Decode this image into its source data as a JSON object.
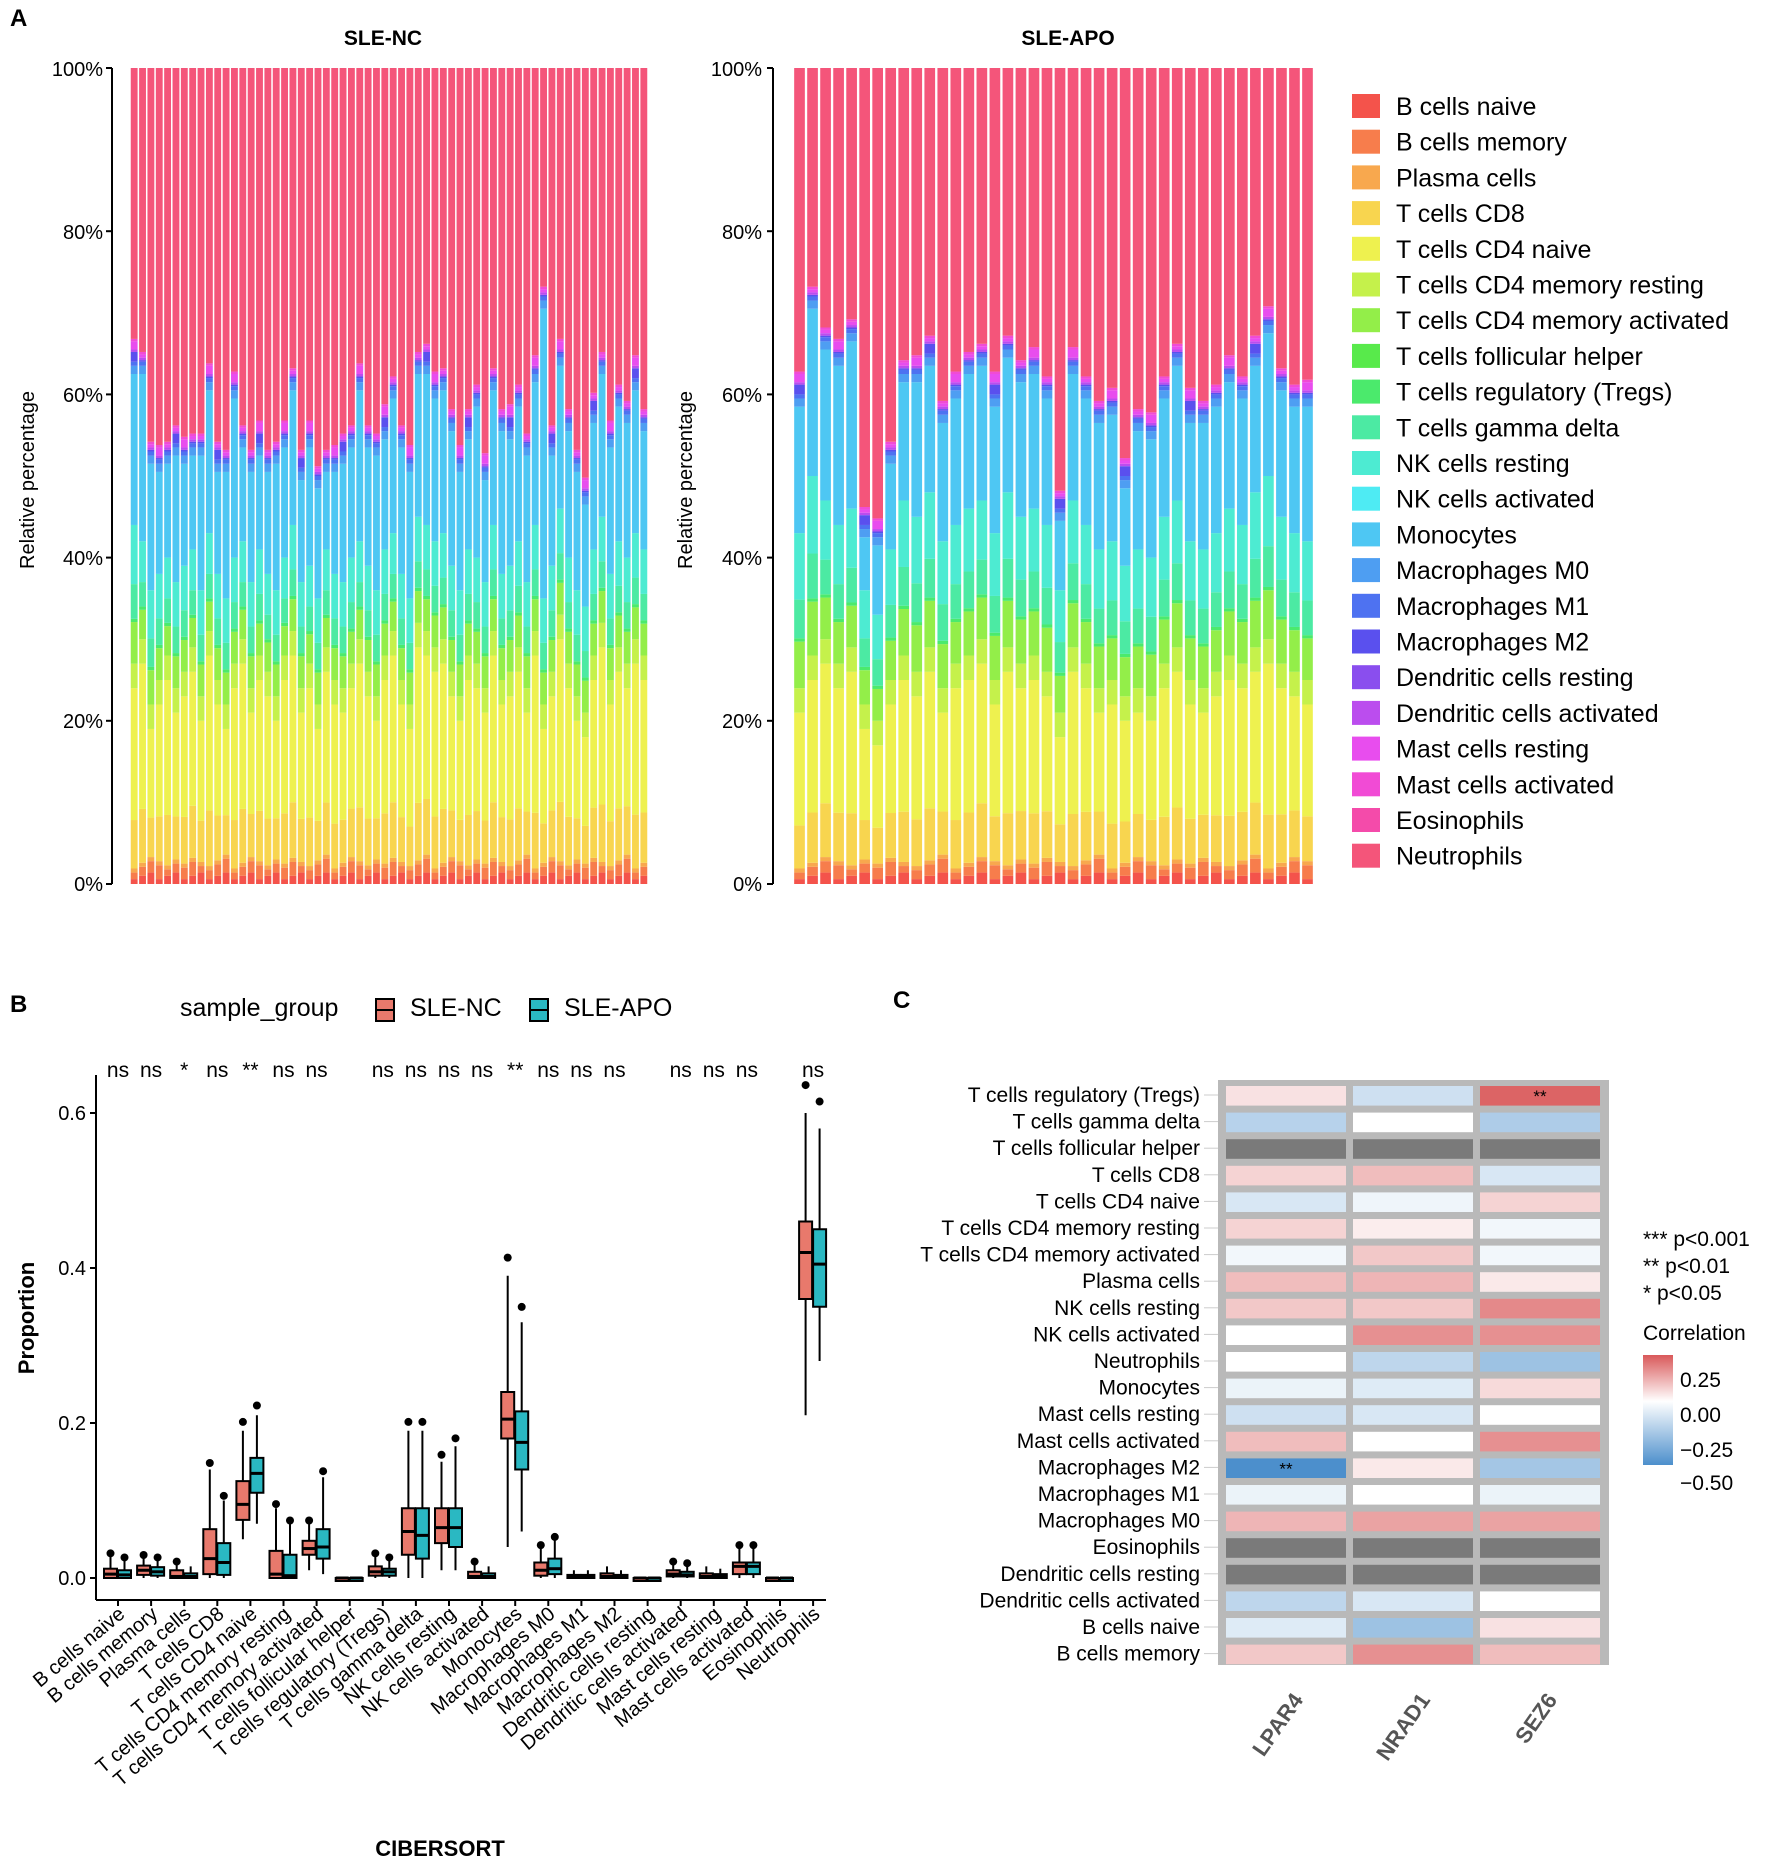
{
  "panel_labels": {
    "a": "A",
    "b": "B",
    "c": "C"
  },
  "colors": {
    "B cells naive": "#F4534B",
    "B cells memory": "#F77D4C",
    "Plasma cells": "#F8A84E",
    "T cells CD8": "#F8D54F",
    "T cells CD4 naive": "#EEF14F",
    "T cells CD4 memory resting": "#C5F14B",
    "T cells CD4 memory activated": "#93EE49",
    "T cells follicular helper": "#58EA4B",
    "T cells regulatory (Tregs)": "#4BEA6C",
    "T cells gamma delta": "#4CEAA3",
    "NK cells resting": "#4DEBD2",
    "NK cells activated": "#4EEBF3",
    "Monocytes": "#4EC7F3",
    "Macrophages M0": "#4E9EF2",
    "Macrophages M1": "#4E72F1",
    "Macrophages M2": "#5A50EE",
    "Dendritic cells resting": "#8A4EEE",
    "Dendritic cells activated": "#BB4DEE",
    "Mast cells resting": "#E84DEE",
    "Mast cells activated": "#F14BD5",
    "Eosinophils": "#F44BAA",
    "Neutrophils": "#F4557A",
    "nc_box": "#E8796C",
    "apo_box": "#2AB8C2",
    "heat_pos": "#D9595A",
    "heat_neg": "#4C8FCC",
    "heat_na": "#7A7A7A"
  },
  "chart_data": [
    {
      "type": "bar",
      "stacked": true,
      "title": "SLE-NC",
      "ylabel": "Relative percentage",
      "yticks": [
        "0%",
        "20%",
        "40%",
        "60%",
        "80%",
        "100%"
      ],
      "ylim": [
        0,
        100
      ],
      "n_samples": 62,
      "note": "stacked composition of 22 CIBERSORT cell types per sample; series in legend order",
      "anchor_values": {
        "Neutrophils_top": [
          35,
          34,
          41,
          45,
          44,
          46,
          45,
          44,
          44,
          36,
          45,
          44,
          36,
          43,
          46,
          43,
          46,
          45,
          44,
          36,
          47,
          43,
          48,
          47,
          46,
          45,
          44,
          36,
          44,
          45,
          42,
          37,
          44,
          47,
          34,
          35,
          38,
          36,
          41,
          46,
          42,
          39,
          48,
          37,
          41,
          42,
          39,
          45,
          36,
          27,
          45,
          34,
          42,
          47,
          51,
          40,
          35,
          43,
          39,
          41,
          36,
          40
        ],
        "Monocytes_top": [
          64,
          64,
          53,
          52,
          53,
          54,
          53,
          54,
          54,
          62,
          52,
          52,
          61,
          55,
          52,
          54,
          52,
          53,
          55,
          62,
          51,
          55,
          50,
          52,
          52,
          53,
          55,
          62,
          55,
          54,
          56,
          61,
          55,
          52,
          64,
          64,
          61,
          62,
          57,
          52,
          56,
          60,
          51,
          62,
          57,
          56,
          60,
          54,
          63,
          72,
          54,
          65,
          57,
          52,
          48,
          58,
          64,
          55,
          60,
          58,
          62,
          57
        ],
        "NK_gd_top": [
          44,
          42,
          36,
          38,
          40,
          37,
          39,
          41,
          36,
          43,
          38,
          35,
          40,
          42,
          37,
          41,
          38,
          36,
          40,
          44,
          37,
          39,
          35,
          41,
          38,
          37,
          40,
          42,
          39,
          36,
          41,
          43,
          38,
          35,
          45,
          44,
          42,
          43,
          39,
          36,
          41,
          40,
          37,
          44,
          38,
          39,
          42,
          37,
          44,
          35,
          39,
          46,
          40,
          36,
          34,
          41,
          45,
          38,
          42,
          40,
          43,
          41
        ],
        "T_CD4_top": [
          27,
          30,
          22,
          25,
          28,
          24,
          26,
          29,
          23,
          31,
          25,
          22,
          27,
          30,
          24,
          28,
          26,
          23,
          28,
          31,
          24,
          27,
          22,
          29,
          25,
          24,
          27,
          30,
          26,
          23,
          28,
          31,
          25,
          22,
          32,
          31,
          29,
          30,
          26,
          23,
          28,
          27,
          24,
          31,
          25,
          26,
          29,
          24,
          31,
          22,
          26,
          33,
          27,
          23,
          21,
          28,
          32,
          25,
          29,
          27,
          30,
          28
        ]
      }
    },
    {
      "type": "bar",
      "stacked": true,
      "title": "SLE-APO",
      "ylabel": "Relative percentage",
      "yticks": [
        "0%",
        "20%",
        "40%",
        "60%",
        "80%",
        "100%"
      ],
      "ylim": [
        0,
        100
      ],
      "n_samples": 40,
      "anchor_values": {
        "Neutrophils_top": [
          40,
          28,
          33,
          35,
          32,
          56,
          57,
          47,
          37,
          37,
          35,
          42,
          39,
          36,
          35,
          40,
          34,
          37,
          36,
          39,
          54,
          36,
          39,
          42,
          41,
          50,
          43,
          44,
          39,
          35,
          42,
          42,
          40,
          37,
          39,
          35,
          31,
          38,
          40,
          40
        ],
        "Monocytes_top": [
          60,
          72,
          67,
          65,
          68,
          44,
          43,
          53,
          63,
          63,
          65,
          58,
          61,
          64,
          65,
          60,
          66,
          63,
          64,
          61,
          46,
          64,
          61,
          58,
          59,
          50,
          57,
          56,
          61,
          65,
          58,
          58,
          60,
          63,
          61,
          65,
          69,
          62,
          60,
          60
        ],
        "NK_gd_top": [
          43,
          50,
          47,
          44,
          46,
          36,
          33,
          41,
          47,
          45,
          48,
          42,
          44,
          46,
          47,
          43,
          48,
          45,
          46,
          44,
          36,
          47,
          44,
          41,
          42,
          39,
          41,
          40,
          45,
          47,
          42,
          41,
          43,
          46,
          44,
          48,
          50,
          45,
          43,
          42
        ],
        "T_CD4_top": [
          24,
          28,
          30,
          27,
          29,
          22,
          20,
          25,
          28,
          26,
          29,
          24,
          27,
          28,
          30,
          25,
          29,
          27,
          28,
          26,
          21,
          29,
          27,
          24,
          25,
          23,
          24,
          23,
          27,
          29,
          25,
          24,
          26,
          28,
          27,
          29,
          30,
          27,
          26,
          25
        ]
      }
    },
    {
      "type": "box",
      "title": "",
      "xlabel": "CIBERSORT",
      "ylabel": "Proportion",
      "ylim": [
        0,
        0.65
      ],
      "yticks": [
        "0.0",
        "0.2",
        "0.4",
        "0.6"
      ],
      "legend_title": "sample_group",
      "legend_items": [
        "SLE-NC",
        "SLE-APO"
      ],
      "categories": [
        "B cells naive",
        "B cells memory",
        "Plasma cells",
        "T cells CD8",
        "T cells CD4 naive",
        "T cells CD4 memory resting",
        "T cells CD4 memory activated",
        "T cells follicular helper",
        "T cells regulatory (Tregs)",
        "T cells gamma delta",
        "NK cells resting",
        "NK cells activated",
        "Monocytes",
        "Macrophages M0",
        "Macrophages M1",
        "Macrophages M2",
        "Dendritic cells resting",
        "Dendritic cells activated",
        "Mast cells resting",
        "Mast cells activated",
        "Eosinophils",
        "Neutrophils"
      ],
      "significance": [
        "ns",
        "ns",
        "*",
        "ns",
        "**",
        "ns",
        "ns",
        "",
        "ns",
        "ns",
        "ns",
        "ns",
        "**",
        "ns",
        "ns",
        "ns",
        "",
        "ns",
        "ns",
        "ns",
        "",
        "ns"
      ],
      "series": [
        {
          "name": "SLE-NC",
          "boxes": [
            [
              0,
              0,
              0.005,
              0.012,
              0.03
            ],
            [
              0,
              0.004,
              0.01,
              0.016,
              0.028
            ],
            [
              0,
              0,
              0.002,
              0.01,
              0.02
            ],
            [
              0,
              0.005,
              0.025,
              0.063,
              0.14
            ],
            [
              0.05,
              0.075,
              0.095,
              0.125,
              0.19
            ],
            [
              0,
              0,
              0.005,
              0.035,
              0.09
            ],
            [
              0.01,
              0.03,
              0.038,
              0.048,
              0.07
            ],
            [
              0,
              0,
              0,
              0,
              0
            ],
            [
              0,
              0.003,
              0.008,
              0.015,
              0.03
            ],
            [
              0,
              0.03,
              0.06,
              0.09,
              0.19
            ],
            [
              0.01,
              0.045,
              0.065,
              0.09,
              0.15
            ],
            [
              0,
              0,
              0.002,
              0.008,
              0.02
            ],
            [
              0.04,
              0.18,
              0.205,
              0.24,
              0.39
            ],
            [
              0,
              0.003,
              0.01,
              0.02,
              0.04
            ],
            [
              0,
              0,
              0.002,
              0.004,
              0.01
            ],
            [
              0,
              0,
              0.002,
              0.006,
              0.015
            ],
            [
              0,
              0,
              0,
              0,
              0
            ],
            [
              0,
              0.002,
              0.005,
              0.01,
              0.02
            ],
            [
              0,
              0,
              0.002,
              0.006,
              0.015
            ],
            [
              0,
              0.005,
              0.015,
              0.02,
              0.04
            ],
            [
              0,
              0,
              0,
              0,
              0
            ],
            [
              0.21,
              0.36,
              0.42,
              0.46,
              0.6
            ]
          ]
        },
        {
          "name": "SLE-APO",
          "boxes": [
            [
              0,
              0,
              0.004,
              0.01,
              0.025
            ],
            [
              0,
              0.003,
              0.008,
              0.014,
              0.025
            ],
            [
              0,
              0,
              0.002,
              0.006,
              0.015
            ],
            [
              0,
              0.004,
              0.02,
              0.045,
              0.1
            ],
            [
              0.07,
              0.11,
              0.135,
              0.155,
              0.21
            ],
            [
              0,
              0,
              0.003,
              0.03,
              0.07
            ],
            [
              0.005,
              0.025,
              0.04,
              0.063,
              0.13
            ],
            [
              0,
              0,
              0,
              0,
              0
            ],
            [
              0,
              0.003,
              0.008,
              0.012,
              0.025
            ],
            [
              0,
              0.025,
              0.055,
              0.09,
              0.19
            ],
            [
              0.01,
              0.04,
              0.065,
              0.09,
              0.17
            ],
            [
              0,
              0,
              0.002,
              0.006,
              0.015
            ],
            [
              0.06,
              0.14,
              0.175,
              0.215,
              0.33
            ],
            [
              0,
              0.005,
              0.012,
              0.025,
              0.05
            ],
            [
              0,
              0,
              0.002,
              0.004,
              0.01
            ],
            [
              0,
              0,
              0.002,
              0.004,
              0.01
            ],
            [
              0,
              0,
              0,
              0,
              0
            ],
            [
              0,
              0.002,
              0.004,
              0.008,
              0.018
            ],
            [
              0,
              0,
              0.002,
              0.005,
              0.012
            ],
            [
              0,
              0.005,
              0.015,
              0.02,
              0.04
            ],
            [
              0,
              0,
              0,
              0,
              0
            ],
            [
              0.28,
              0.35,
              0.405,
              0.45,
              0.58
            ]
          ]
        }
      ]
    },
    {
      "type": "heatmap",
      "rows": [
        "T cells regulatory (Tregs)",
        "T cells gamma delta",
        "T cells follicular helper",
        "T cells CD8",
        "T cells CD4 naive",
        "T cells CD4 memory resting",
        "T cells CD4 memory activated",
        "Plasma cells",
        "NK cells resting",
        "NK cells activated",
        "Neutrophils",
        "Monocytes",
        "Mast cells resting",
        "Mast cells activated",
        "Macrophages M2",
        "Macrophages M1",
        "Macrophages M0",
        "Eosinophils",
        "Dendritic cells resting",
        "Dendritic cells activated",
        "B cells naive",
        "B cells memory"
      ],
      "columns": [
        "LPAR4",
        "NRAD1",
        "SEZ6"
      ],
      "values": [
        [
          0.08,
          -0.15,
          0.42
        ],
        [
          -0.22,
          0.0,
          -0.25
        ],
        [
          null,
          null,
          null
        ],
        [
          0.12,
          0.18,
          -0.12
        ],
        [
          -0.12,
          -0.05,
          0.12
        ],
        [
          0.12,
          0.05,
          -0.04
        ],
        [
          -0.04,
          0.15,
          -0.04
        ],
        [
          0.18,
          0.2,
          0.06
        ],
        [
          0.15,
          0.15,
          0.32
        ],
        [
          0.0,
          0.3,
          0.3
        ],
        [
          0.0,
          -0.2,
          -0.3
        ],
        [
          -0.06,
          -0.1,
          0.1
        ],
        [
          -0.15,
          -0.12,
          0.0
        ],
        [
          0.18,
          0.0,
          0.3
        ],
        [
          -0.55,
          0.06,
          -0.28
        ],
        [
          -0.06,
          0.0,
          -0.06
        ],
        [
          0.2,
          0.25,
          0.25
        ],
        [
          null,
          null,
          null
        ],
        [
          null,
          null,
          null
        ],
        [
          -0.2,
          -0.12,
          0.0
        ],
        [
          -0.1,
          -0.3,
          0.08
        ],
        [
          0.15,
          0.3,
          0.18
        ]
      ],
      "annotations": [
        {
          "row": "T cells regulatory (Tregs)",
          "col": "SEZ6",
          "text": "**"
        },
        {
          "row": "Macrophages M2",
          "col": "LPAR4",
          "text": "**"
        }
      ],
      "pvalue_legend": [
        "***  p<0.001",
        "**  p<0.01",
        "*  p<0.05"
      ],
      "colorbar_title": "Correlation",
      "colorbar_ticks": [
        "0.25",
        "0.00",
        "−0.25",
        "−0.50"
      ]
    }
  ]
}
